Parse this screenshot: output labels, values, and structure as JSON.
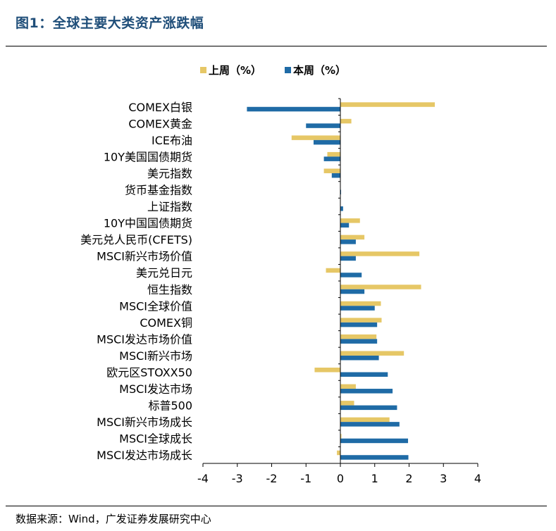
{
  "title": "图1：全球主要大类资产涨跌幅",
  "source": "数据来源：Wind，广发证券发展研究中心",
  "colors": {
    "prev": "#E6C766",
    "curr": "#1F6BA6",
    "title": "#1f4e79"
  },
  "chart_data": {
    "type": "bar",
    "orientation": "horizontal",
    "title": "",
    "xlabel": "",
    "ylabel": "",
    "xlim": [
      -4,
      4
    ],
    "xticks": [
      "-4",
      "-3",
      "-2",
      "-1",
      "0",
      "1",
      "2",
      "3",
      "4"
    ],
    "legend_position": "top",
    "grid": false,
    "categories": [
      "COMEX白银",
      "COMEX黄金",
      "ICE布油",
      "10Y美国国债期货",
      "美元指数",
      "货币基金指数",
      "上证指数",
      "10Y中国国债期货",
      "美元兑人民币(CFETS)",
      "MSCI新兴市场价值",
      "美元兑日元",
      "恒生指数",
      "MSCI全球价值",
      "COMEX铜",
      "MSCI发达市场价值",
      "MSCI新兴市场",
      "欧元区STOXX50",
      "MSCI发达市场",
      "标普500",
      "MSCI新兴市场成长",
      "MSCI全球成长",
      "MSCI发达市场成长"
    ],
    "series": [
      {
        "name": "上周（%）",
        "values": [
          2.75,
          0.32,
          -1.42,
          -0.38,
          -0.48,
          0.0,
          0.0,
          0.57,
          0.7,
          2.3,
          -0.42,
          2.35,
          1.18,
          1.2,
          1.05,
          1.85,
          -0.75,
          0.45,
          0.4,
          1.43,
          0.03,
          -0.1
        ]
      },
      {
        "name": "本周（%）",
        "values": [
          -2.72,
          -1.0,
          -0.78,
          -0.48,
          -0.25,
          0.02,
          0.08,
          0.25,
          0.45,
          0.45,
          0.62,
          0.7,
          1.0,
          1.07,
          1.07,
          1.12,
          1.38,
          1.52,
          1.65,
          1.72,
          1.97,
          1.98
        ]
      }
    ]
  }
}
